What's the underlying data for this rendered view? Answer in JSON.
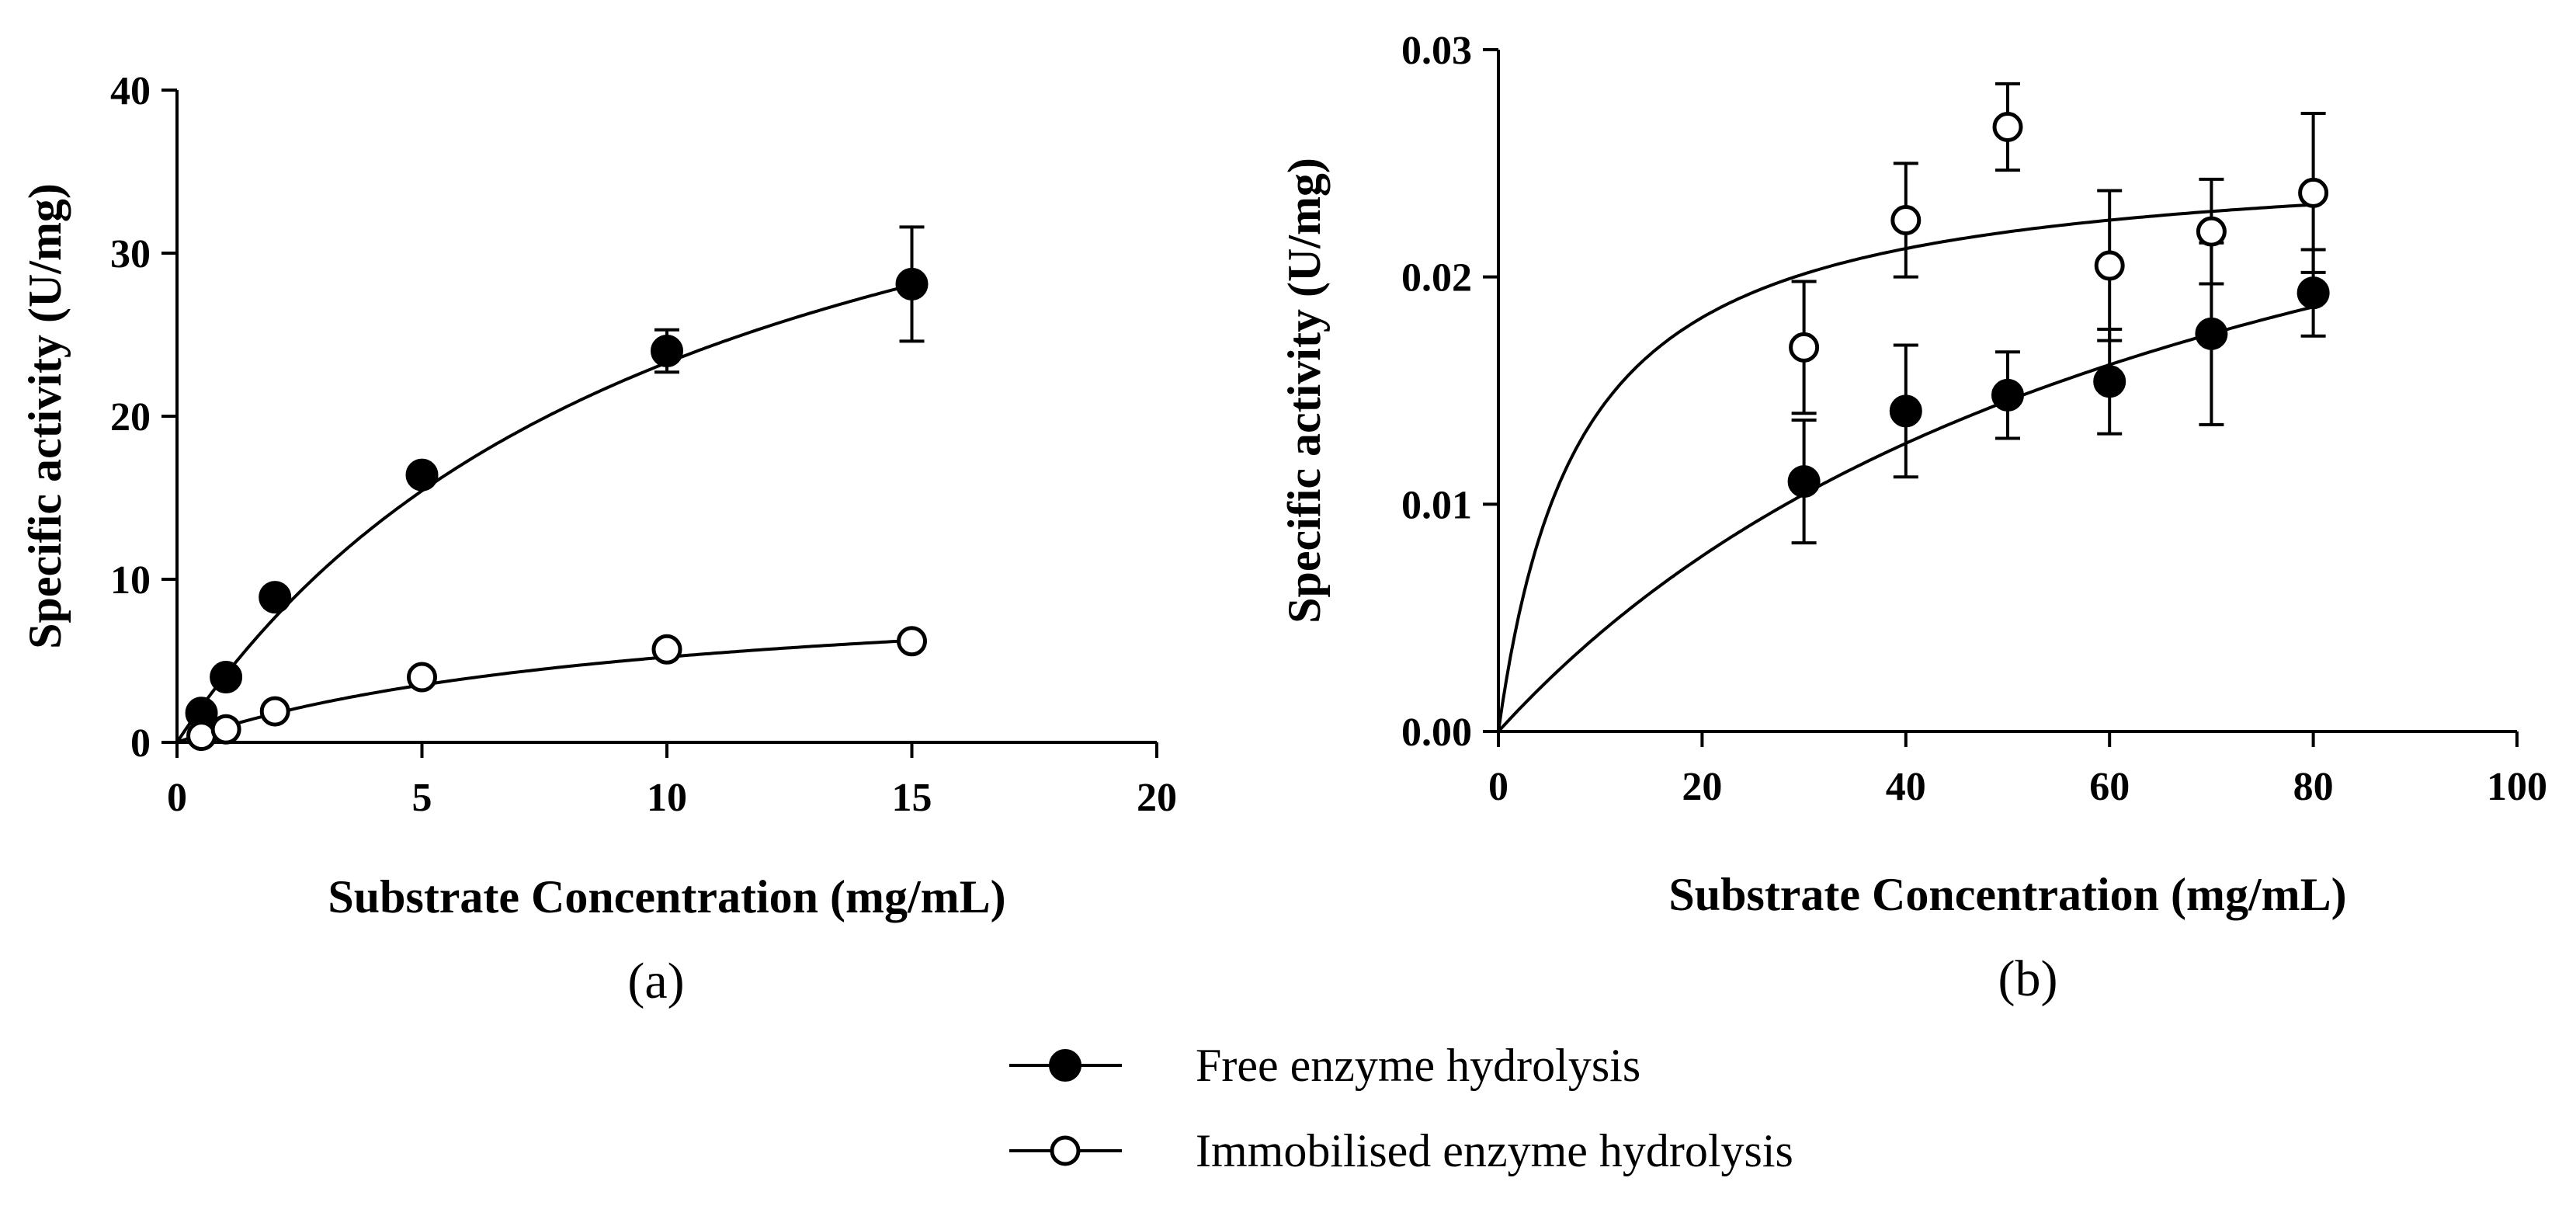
{
  "legend": {
    "free_label": "Free enzyme hydrolysis",
    "immobilised_label": "Immobilised enzyme hydrolysis"
  },
  "chart_data": [
    {
      "type": "scatter",
      "panel_label": "(a)",
      "xlabel": "Substrate Concentration (mg/mL)",
      "ylabel": "Specific activity (U/mg)",
      "xlim": [
        0,
        20
      ],
      "ylim": [
        0,
        40
      ],
      "xticks": [
        0,
        5,
        10,
        15,
        20
      ],
      "yticks": [
        0,
        10,
        20,
        30,
        40
      ],
      "grid": false,
      "series": [
        {
          "name": "Free enzyme hydrolysis",
          "marker": "filled-circle",
          "x": [
            0.5,
            1,
            2,
            5,
            10,
            15
          ],
          "y": [
            1.8,
            4.0,
            8.9,
            16.4,
            24.0,
            28.1
          ],
          "yerr": [
            0,
            0,
            0,
            0,
            1.3,
            3.5
          ],
          "fit": {
            "model": "michaelis-menten",
            "vmax": 47.5,
            "km": 10.4
          }
        },
        {
          "name": "Immobilised enzyme hydrolysis",
          "marker": "open-circle",
          "x": [
            0.5,
            1,
            2,
            5,
            10,
            15
          ],
          "y": [
            0.4,
            0.8,
            1.9,
            4.0,
            5.7,
            6.2
          ],
          "yerr": [
            0,
            0,
            0,
            0,
            0,
            0
          ],
          "fit": {
            "model": "michaelis-menten",
            "vmax": 10.2,
            "km": 9.5
          }
        }
      ]
    },
    {
      "type": "scatter",
      "panel_label": "(b)",
      "xlabel": "Substrate Concentration (mg/mL)",
      "ylabel": "Specific activity (U/mg)",
      "xlim": [
        0,
        100
      ],
      "ylim": [
        0,
        0.03
      ],
      "xticks": [
        0,
        20,
        40,
        60,
        80,
        100
      ],
      "yticks": [
        0.0,
        0.01,
        0.02,
        0.03
      ],
      "ytick_labels": [
        "0.00",
        "0.01",
        "0.02",
        "0.03"
      ],
      "grid": false,
      "series": [
        {
          "name": "Free enzyme hydrolysis",
          "marker": "filled-circle",
          "x": [
            30,
            40,
            50,
            60,
            70,
            80
          ],
          "y": [
            0.011,
            0.0141,
            0.0148,
            0.0154,
            0.0175,
            0.0193
          ],
          "yerr": [
            0.0027,
            0.0029,
            0.0019,
            0.0023,
            0.004,
            0.0019
          ],
          "fit": {
            "model": "michaelis-menten",
            "vmax": 0.0355,
            "km": 72
          }
        },
        {
          "name": "Immobilised enzyme hydrolysis",
          "marker": "open-circle",
          "x": [
            30,
            40,
            50,
            60,
            70,
            80
          ],
          "y": [
            0.0169,
            0.0225,
            0.0266,
            0.0205,
            0.022,
            0.0237
          ],
          "yerr": [
            0.0029,
            0.0025,
            0.0019,
            0.0033,
            0.0023,
            0.0035
          ],
          "fit": {
            "model": "michaelis-menten",
            "vmax": 0.0255,
            "km": 8.0
          }
        }
      ]
    }
  ]
}
